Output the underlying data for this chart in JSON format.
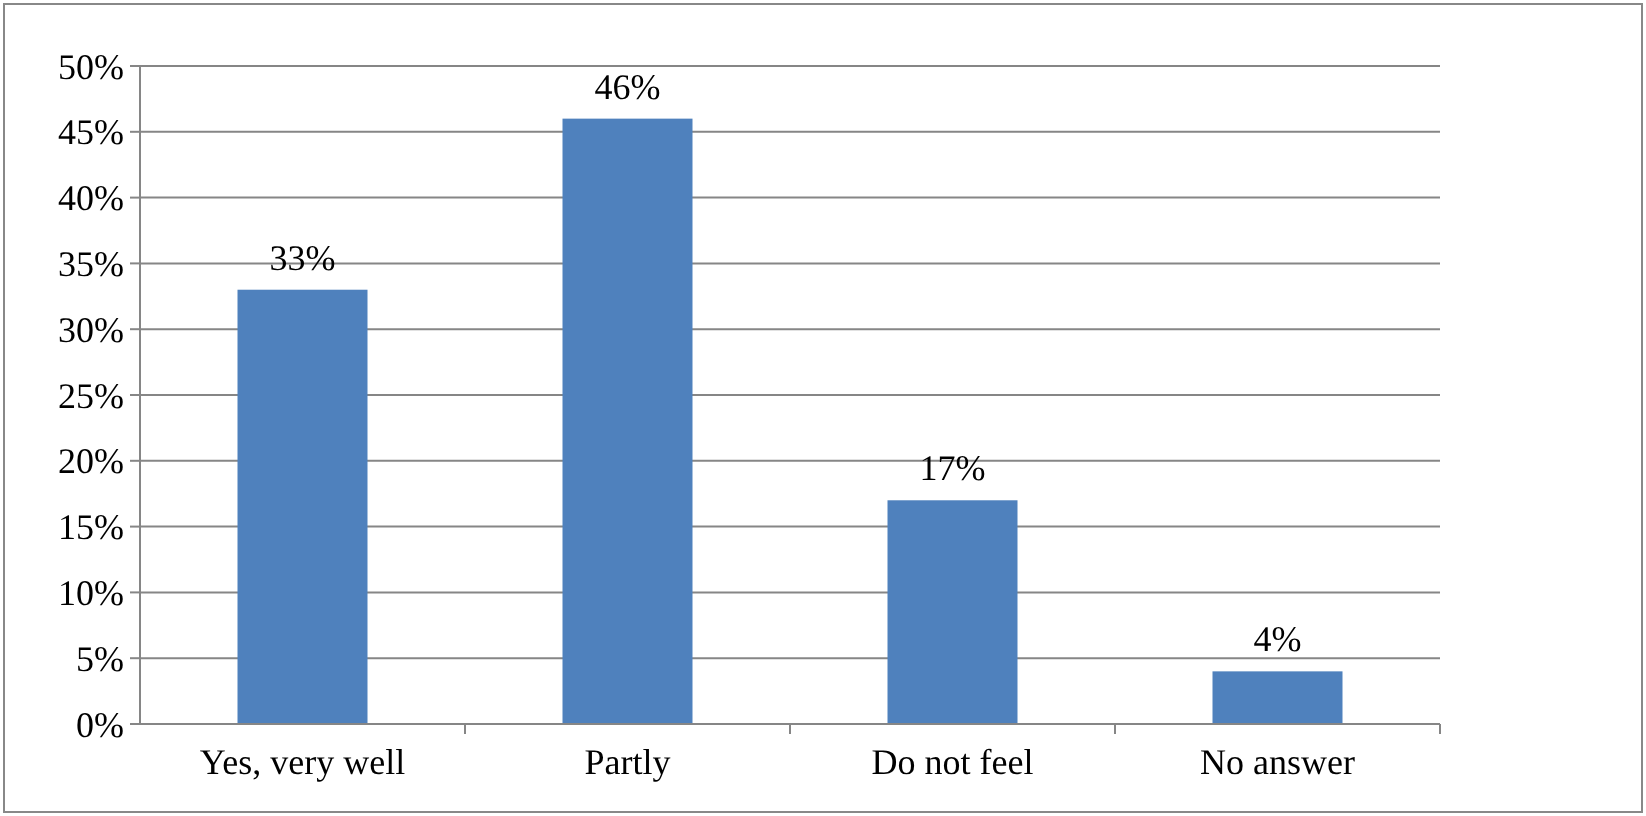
{
  "chart_data": {
    "type": "bar",
    "categories": [
      "Yes, very well",
      "Partly",
      "Do not feel",
      "No answer"
    ],
    "values": [
      33,
      46,
      17,
      4
    ],
    "value_labels": [
      "33%",
      "46%",
      "17%",
      "4%"
    ],
    "color": "#4f81bd",
    "ylim": [
      0,
      50
    ],
    "yticks": [
      {
        "value": 0,
        "label": "0%"
      },
      {
        "value": 5,
        "label": "5%"
      },
      {
        "value": 10,
        "label": "10%"
      },
      {
        "value": 15,
        "label": "15%"
      },
      {
        "value": 20,
        "label": "20%"
      },
      {
        "value": 25,
        "label": "25%"
      },
      {
        "value": 30,
        "label": "30%"
      },
      {
        "value": 35,
        "label": "35%"
      },
      {
        "value": 40,
        "label": "40%"
      },
      {
        "value": 45,
        "label": "45%"
      },
      {
        "value": 50,
        "label": "50%"
      }
    ],
    "grid": "y"
  }
}
